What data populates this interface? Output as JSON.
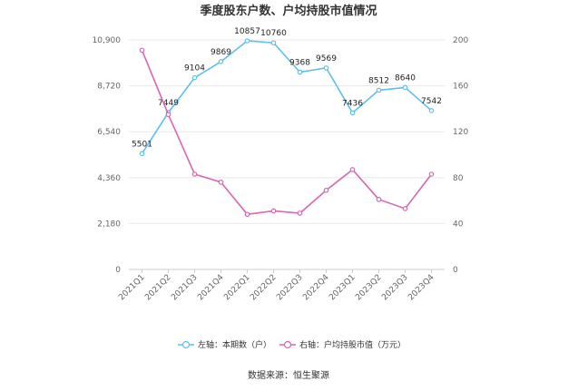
{
  "chart_data": {
    "type": "line",
    "title": "季度股东户数、户均持股市值情况",
    "categories": [
      "2021Q1",
      "2021Q2",
      "2021Q3",
      "2021Q4",
      "2022Q1",
      "2022Q2",
      "2022Q3",
      "2022Q4",
      "2023Q1",
      "2023Q2",
      "2023Q3",
      "2023Q4"
    ],
    "left_axis": {
      "ticks": [
        "0",
        "2,180",
        "4,360",
        "6,540",
        "8,720",
        "10,900"
      ],
      "ylim": [
        0,
        10900
      ]
    },
    "right_axis": {
      "ticks": [
        "0",
        "40",
        "80",
        "120",
        "160",
        "200"
      ],
      "ylim": [
        0,
        200
      ]
    },
    "series": [
      {
        "name": "左轴：本期数（户）",
        "axis": "left",
        "color": "#5bc0f0",
        "values": [
          5501,
          7449,
          9104,
          9869,
          10857,
          10760,
          9368,
          9569,
          7436,
          8512,
          8640,
          7542
        ],
        "labels": [
          "5501",
          "7449",
          "9104",
          "9869",
          "10857",
          "10760",
          "9368",
          "9569",
          "7436",
          "8512",
          "8640",
          "7542"
        ]
      },
      {
        "name": "右轴：户均持股市值（万元）",
        "axis": "right",
        "color": "#d966b0",
        "values": [
          191,
          135,
          83,
          76,
          48,
          51,
          49,
          69,
          87,
          61,
          53,
          83
        ]
      }
    ],
    "legend_position": "bottom",
    "grid": true,
    "source": "数据来源：恒生聚源"
  }
}
